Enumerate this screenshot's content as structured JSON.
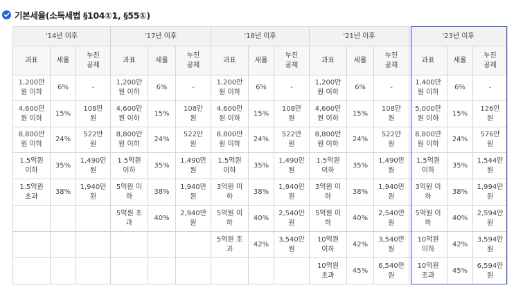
{
  "title": "기본세율(소득세법 §104①1, §55①)",
  "periods": [
    "'14년 이후",
    "'17년 이후",
    "'18년 이후",
    "'21년 이후",
    "'23년 이후"
  ],
  "headers": {
    "base": "과표",
    "rate": "세율",
    "deduction": "누진\n공제"
  },
  "columns": [
    {
      "rows": [
        {
          "base": "1,200만\n원 이하",
          "rate": "6%",
          "deduction": "-"
        },
        {
          "base": "4,600만\n원 이하",
          "rate": "15%",
          "deduction": "108만\n원"
        },
        {
          "base": "8,800만\n원 이하",
          "rate": "24%",
          "deduction": "522만\n원"
        },
        {
          "base": "1.5억원\n이하",
          "rate": "35%",
          "deduction": "1,490만\n원"
        },
        {
          "base": "1.5억원\n초과",
          "rate": "38%",
          "deduction": "1,940만\n원"
        }
      ]
    },
    {
      "rows": [
        {
          "base": "1,200만\n원 이하",
          "rate": "6%",
          "deduction": "-"
        },
        {
          "base": "4,600만\n원 이하",
          "rate": "15%",
          "deduction": "108만\n원"
        },
        {
          "base": "8,800만\n원 이하",
          "rate": "24%",
          "deduction": "522만\n원"
        },
        {
          "base": "1.5억원\n이하",
          "rate": "35%",
          "deduction": "1,490만\n원"
        },
        {
          "base": "5억원 이\n하",
          "rate": "38%",
          "deduction": "1,940만\n원"
        },
        {
          "base": "5억원 초\n과",
          "rate": "40%",
          "deduction": "2,940만\n원"
        }
      ]
    },
    {
      "rows": [
        {
          "base": "1,200만\n원 이하",
          "rate": "6%",
          "deduction": "-"
        },
        {
          "base": "4,600만\n원 이하",
          "rate": "15%",
          "deduction": "108만\n원"
        },
        {
          "base": "8,800만\n원 이하",
          "rate": "24%",
          "deduction": "522만\n원"
        },
        {
          "base": "1.5억원\n이하",
          "rate": "35%",
          "deduction": "1,490만\n원"
        },
        {
          "base": "3억원 이\n하",
          "rate": "38%",
          "deduction": "1,940만\n원"
        },
        {
          "base": "5억원 이\n하",
          "rate": "40%",
          "deduction": "2,540만\n원"
        },
        {
          "base": "5억원 조\n과",
          "rate": "42%",
          "deduction": "3,540만\n원"
        }
      ]
    },
    {
      "rows": [
        {
          "base": "1,200만\n원 이하",
          "rate": "6%",
          "deduction": "-"
        },
        {
          "base": "4,600만\n원 이하",
          "rate": "15%",
          "deduction": "108만\n원"
        },
        {
          "base": "8,800만\n원 이하",
          "rate": "24%",
          "deduction": "522만\n원"
        },
        {
          "base": "1.5억원\n이하",
          "rate": "35%",
          "deduction": "1,490만\n원"
        },
        {
          "base": "3억원 이\n하",
          "rate": "38%",
          "deduction": "1,940만\n원"
        },
        {
          "base": "5억원 이\n하",
          "rate": "40%",
          "deduction": "2,540만\n원"
        },
        {
          "base": "10억원\n이하",
          "rate": "42%",
          "deduction": "3,540만\n원"
        },
        {
          "base": "10억원\n초과",
          "rate": "45%",
          "deduction": "6,540만\n원"
        }
      ]
    },
    {
      "rows": [
        {
          "base": "1,400만\n원 이하",
          "rate": "6%",
          "deduction": "-"
        },
        {
          "base": "5,000만\n원 이하",
          "rate": "15%",
          "deduction": "126만\n원"
        },
        {
          "base": "8,800만\n원 이하",
          "rate": "24%",
          "deduction": "576만\n원"
        },
        {
          "base": "1.5억원\n이하",
          "rate": "35%",
          "deduction": "1,544만\n원"
        },
        {
          "base": "3억원 이\n하",
          "rate": "38%",
          "deduction": "1,994만\n원"
        },
        {
          "base": "5억원 이\n하",
          "rate": "40%",
          "deduction": "2,594만\n원"
        },
        {
          "base": "10억원\n이하",
          "rate": "42%",
          "deduction": "3,594만\n원"
        },
        {
          "base": "10억원\n조과",
          "rate": "45%",
          "deduction": "6,594만\n원"
        }
      ]
    }
  ],
  "highlight_color": "#2b4bd6",
  "icon": "check-circle-icon"
}
